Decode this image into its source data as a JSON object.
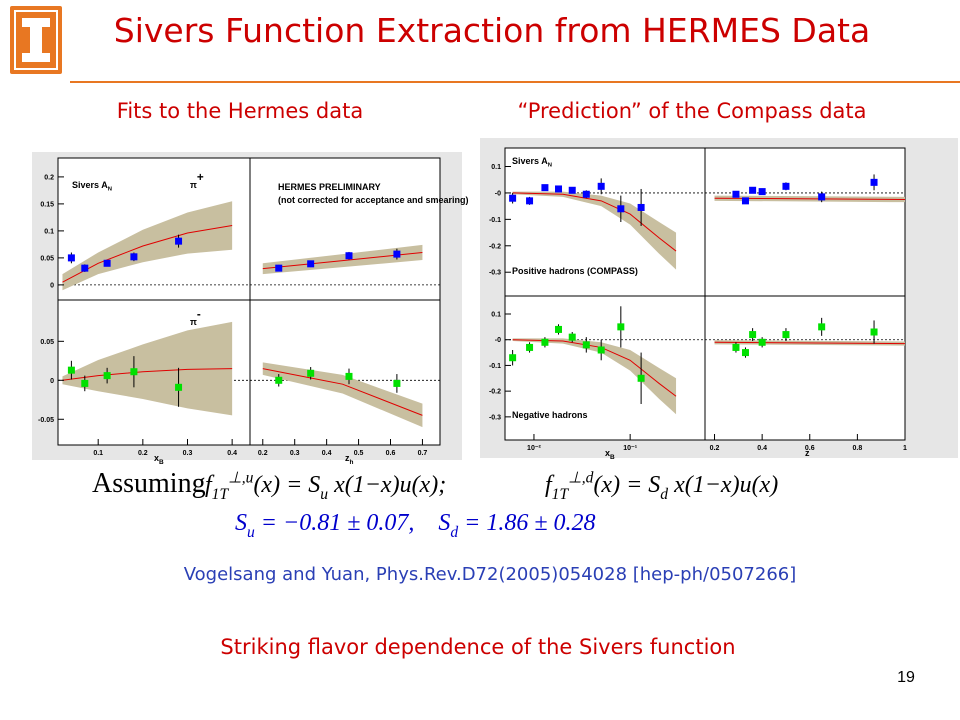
{
  "header": {
    "title": "Sivers Function Extraction from HERMES Data"
  },
  "headings": {
    "left": "Fits to the Hermes data",
    "right": "“Prediction” of the Compass data"
  },
  "figures": [
    {
      "panels": [
        {
          "xlim": [
            0.01,
            0.44
          ],
          "ylim": [
            -0.028,
            0.235
          ],
          "yticks": [
            0,
            0.05,
            0.1,
            0.15,
            0.2
          ],
          "zero_line": true,
          "color": "#0000ff",
          "labels": [
            [
              {
                "t": "Sivers A"
              },
              {
                "t": "N",
                "pos": "sub"
              }
            ],
            [
              {
                "t": "π"
              },
              {
                "t": "+",
                "pos": "sup"
              }
            ]
          ],
          "points": {
            "x": [
              0.04,
              0.07,
              0.12,
              0.18,
              0.28
            ],
            "y": [
              0.05,
              0.031,
              0.04,
              0.052,
              0.081
            ],
            "err": [
              0.01,
              0.007,
              0.006,
              0.008,
              0.012
            ]
          },
          "fit": {
            "x": [
              0.02,
              0.1,
              0.2,
              0.3,
              0.4
            ],
            "y": [
              0.005,
              0.04,
              0.072,
              0.096,
              0.11
            ],
            "band": [
              0.015,
              0.02,
              0.03,
              0.038,
              0.045
            ]
          }
        },
        {
          "xlim": [
            0.16,
            0.755
          ],
          "ylim": [
            -0.028,
            0.235
          ],
          "zero_line": true,
          "color": "#0000ff",
          "labels": [
            [
              {
                "t": "HERMES PRELIMINARY"
              }
            ],
            [
              {
                "t": "(not corrected for acceptance and smearing)"
              }
            ]
          ],
          "points": {
            "x": [
              0.25,
              0.35,
              0.47,
              0.62
            ],
            "y": [
              0.031,
              0.039,
              0.054,
              0.057
            ],
            "err": [
              0.006,
              0.006,
              0.007,
              0.01
            ]
          },
          "fit": {
            "x": [
              0.2,
              0.45,
              0.7
            ],
            "y": [
              0.03,
              0.045,
              0.06
            ],
            "band": [
              0.01,
              0.012,
              0.014
            ]
          }
        },
        {
          "xlim": [
            0.01,
            0.44
          ],
          "ylim": [
            -0.083,
            0.103
          ],
          "yticks": [
            -0.05,
            0,
            0.05
          ],
          "xticks": [
            0.1,
            0.2,
            0.3,
            0.4
          ],
          "zero_line": true,
          "color": "#00e000",
          "xlabel": [
            {
              "t": "x"
            },
            {
              "t": "B",
              "pos": "sub"
            }
          ],
          "labels": [
            [
              {
                "t": "π"
              },
              {
                "t": "-",
                "pos": "sup"
              }
            ]
          ],
          "points": {
            "x": [
              0.04,
              0.07,
              0.12,
              0.18,
              0.28
            ],
            "y": [
              0.013,
              -0.004,
              0.006,
              0.011,
              -0.009
            ],
            "err": [
              0.012,
              0.01,
              0.01,
              0.02,
              0.025
            ]
          },
          "fit": {
            "x": [
              0.02,
              0.1,
              0.2,
              0.3,
              0.4
            ],
            "y": [
              0,
              0.006,
              0.011,
              0.014,
              0.015
            ],
            "band": [
              0.005,
              0.02,
              0.035,
              0.05,
              0.06
            ]
          }
        },
        {
          "xlim": [
            0.16,
            0.755
          ],
          "ylim": [
            -0.083,
            0.103
          ],
          "xticks": [
            0.2,
            0.3,
            0.4,
            0.5,
            0.6,
            0.7
          ],
          "zero_line": true,
          "color": "#00e000",
          "xlabel": [
            {
              "t": "z"
            },
            {
              "t": "h",
              "pos": "sub"
            }
          ],
          "labels": [],
          "points": {
            "x": [
              0.25,
              0.35,
              0.47,
              0.62
            ],
            "y": [
              0,
              0.009,
              0.005,
              -0.004
            ],
            "err": [
              0.008,
              0.008,
              0.01,
              0.012
            ]
          },
          "fit": {
            "x": [
              0.2,
              0.45,
              0.7
            ],
            "y": [
              0.015,
              -0.005,
              -0.045
            ],
            "band": [
              0.008,
              0.012,
              0.015
            ]
          }
        }
      ]
    },
    {
      "panels": [
        {
          "xlog": true,
          "xlim": [
            0.005,
            0.6
          ],
          "ylim": [
            -0.39,
            0.17
          ],
          "yticks": [
            0.1,
            {
              "value": 0,
              "label": "-0"
            },
            -0.1,
            -0.2,
            -0.3
          ],
          "zero_line": true,
          "color": "#0000ff",
          "labels": [
            [
              {
                "t": "Sivers A"
              },
              {
                "t": "N",
                "pos": "sub"
              }
            ],
            [
              {
                "t": "Positive hadrons (COMPASS)"
              }
            ]
          ],
          "points": {
            "x": [
              0.006,
              0.009,
              0.013,
              0.018,
              0.025,
              0.035,
              0.05,
              0.08,
              0.13
            ],
            "y": [
              -0.02,
              -0.03,
              0.02,
              0.015,
              0.01,
              -0.005,
              0.025,
              -0.06,
              -0.055
            ],
            "err": [
              0.02,
              0.015,
              0.012,
              0.012,
              0.012,
              0.015,
              0.03,
              0.05,
              0.07
            ]
          },
          "fit": {
            "x": [
              0.006,
              0.02,
              0.05,
              0.1,
              0.2,
              0.3
            ],
            "y": [
              0,
              -0.005,
              -0.03,
              -0.08,
              -0.17,
              -0.22
            ],
            "band": [
              0.005,
              0.01,
              0.02,
              0.04,
              0.06,
              0.07
            ]
          }
        },
        {
          "xlim": [
            0.16,
            1.0
          ],
          "ylim": [
            -0.39,
            0.17
          ],
          "zero_line": true,
          "color": "#0000ff",
          "labels": [],
          "points": {
            "x": [
              0.29,
              0.33,
              0.36,
              0.4,
              0.5,
              0.65,
              0.87
            ],
            "y": [
              -0.005,
              -0.03,
              0.01,
              0.005,
              0.025,
              -0.015,
              0.04
            ],
            "err": [
              0.01,
              0.01,
              0.012,
              0.012,
              0.015,
              0.02,
              0.03
            ]
          },
          "fit": {
            "x": [
              0.2,
              1.0
            ],
            "y": [
              -0.02,
              -0.025
            ],
            "band": [
              0.01,
              0.01
            ]
          }
        },
        {
          "xlog": true,
          "xlim": [
            0.005,
            0.6
          ],
          "ylim": [
            -0.39,
            0.17
          ],
          "yticks": [
            0.1,
            {
              "value": 0,
              "label": "-0"
            },
            -0.1,
            -0.2,
            -0.3
          ],
          "xticks": [
            {
              "value": 0.01,
              "label": "10⁻²"
            },
            {
              "value": 0.1,
              "label": "10⁻¹"
            }
          ],
          "zero_line": true,
          "color": "#00e000",
          "xlabel": [
            {
              "t": "x"
            },
            {
              "t": "B",
              "pos": "sub"
            }
          ],
          "labels": [
            [
              {
                "t": "Negative hadrons"
              }
            ]
          ],
          "points": {
            "x": [
              0.006,
              0.009,
              0.013,
              0.018,
              0.025,
              0.035,
              0.05,
              0.08,
              0.13
            ],
            "y": [
              -0.07,
              -0.03,
              -0.01,
              0.04,
              0.01,
              -0.02,
              -0.04,
              0.05,
              -0.15
            ],
            "err": [
              0.03,
              0.02,
              0.02,
              0.02,
              0.02,
              0.03,
              0.04,
              0.08,
              0.1
            ]
          },
          "fit": {
            "x": [
              0.006,
              0.02,
              0.05,
              0.1,
              0.2,
              0.3
            ],
            "y": [
              0,
              -0.005,
              -0.03,
              -0.08,
              -0.17,
              -0.22
            ],
            "band": [
              0.005,
              0.01,
              0.02,
              0.04,
              0.06,
              0.07
            ]
          }
        },
        {
          "xlim": [
            0.16,
            1.0
          ],
          "ylim": [
            -0.39,
            0.17
          ],
          "xticks": [
            0.2,
            0.4,
            0.6,
            0.8,
            1
          ],
          "zero_line": true,
          "color": "#00e000",
          "xlabel": [
            {
              "t": "z"
            }
          ],
          "labels": [],
          "points": {
            "x": [
              0.29,
              0.33,
              0.36,
              0.4,
              0.5,
              0.65,
              0.87
            ],
            "y": [
              -0.03,
              -0.05,
              0.02,
              -0.01,
              0.02,
              0.05,
              0.03
            ],
            "err": [
              0.02,
              0.02,
              0.025,
              0.02,
              0.025,
              0.035,
              0.045
            ]
          },
          "fit": {
            "x": [
              0.2,
              1.0
            ],
            "y": [
              -0.01,
              -0.015
            ],
            "band": [
              0.008,
              0.008
            ]
          }
        }
      ]
    }
  ],
  "equation": {
    "intro": "Assuming",
    "formulas": [
      [
        {
          "t": "f"
        },
        {
          "t": "1T",
          "pos": "sub"
        },
        {
          "t": "⊥,u",
          "pos": "sup"
        },
        {
          "t": "(x) = S"
        },
        {
          "t": "u",
          "pos": "sub"
        },
        {
          "t": " x(1−x)u(x);"
        }
      ],
      [
        {
          "t": "f"
        },
        {
          "t": "1T",
          "pos": "sub"
        },
        {
          "t": "⊥,d",
          "pos": "sup"
        },
        {
          "t": "(x) = S"
        },
        {
          "t": "d",
          "pos": "sub"
        },
        {
          "t": " x(1−x)u(x)"
        }
      ]
    ],
    "params": [
      {
        "t": "S"
      },
      {
        "t": "u",
        "pos": "sub"
      },
      {
        "t": " = −0.81 ± 0.07,    S"
      },
      {
        "t": "d",
        "pos": "sub"
      },
      {
        "t": " = 1.86 ± 0.28"
      }
    ]
  },
  "citation": "Vogelsang and Yuan, Phys.Rev.D72(2005)054028 [hep-ph/0507266]",
  "conclusion": "Striking flavor dependence of the Sivers function",
  "page_number": "19"
}
